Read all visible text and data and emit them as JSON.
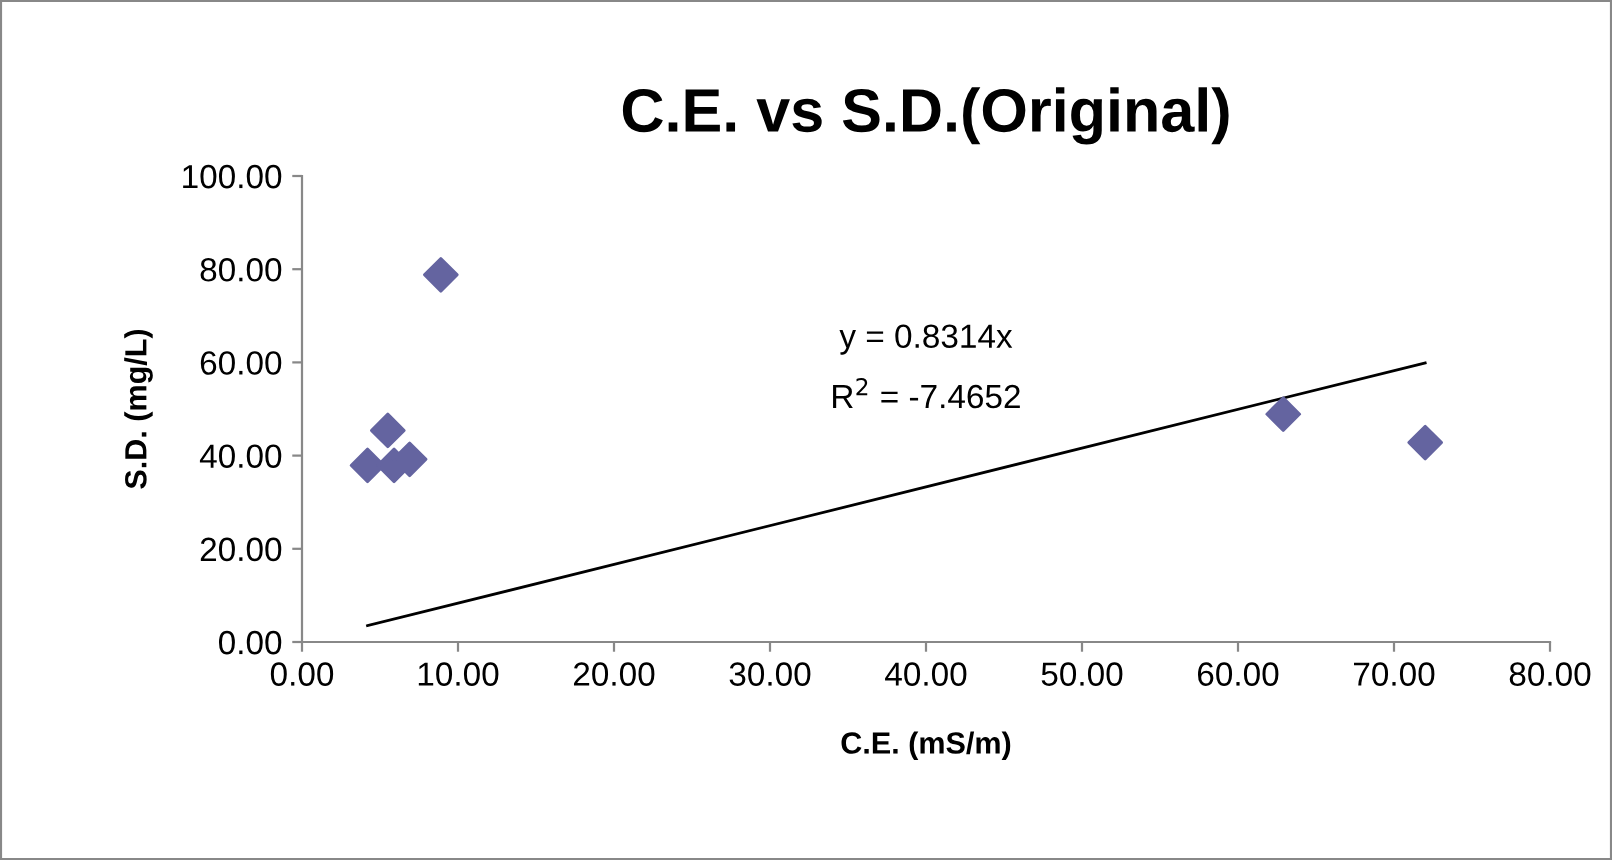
{
  "chart_data": {
    "type": "scatter",
    "title": "C.E. vs S.D.(Original)",
    "xlabel": "C.E. (mS/m)",
    "ylabel": "S.D. (mg/L)",
    "series": [
      {
        "color": "#6464a0",
        "marker": "diamond",
        "x": [
          4.2,
          5.5,
          5.9,
          6.9,
          8.9,
          62.9,
          72.0
        ],
        "values": [
          37.9,
          45.4,
          37.9,
          39.2,
          78.8,
          48.9,
          42.8
        ]
      },
      {
        "type": "line",
        "color": "#000000",
        "marker": "none",
        "line_style": "solid",
        "x": [
          4.2,
          72.0
        ],
        "values": [
          3.5,
          59.9
        ]
      }
    ],
    "annotations": [
      "y = 0.8314x",
      "R$^{2}$ = -7.4652"
    ],
    "xlim": [
      0,
      80
    ],
    "xticks": [
      {
        "value": 0,
        "label": "0.00"
      },
      {
        "value": 10,
        "label": "10.00"
      },
      {
        "value": 20,
        "label": "20.00"
      },
      {
        "value": 30,
        "label": "30.00"
      },
      {
        "value": 40,
        "label": "40.00"
      },
      {
        "value": 50,
        "label": "50.00"
      },
      {
        "value": 60,
        "label": "60.00"
      },
      {
        "value": 70,
        "label": "70.00"
      },
      {
        "value": 80,
        "label": "80.00"
      }
    ],
    "ylim": [
      0,
      100
    ],
    "yticks": [
      {
        "value": 0,
        "label": "0.00"
      },
      {
        "value": 20,
        "label": "20.00"
      },
      {
        "value": 40,
        "label": "40.00"
      },
      {
        "value": 60,
        "label": "60.00"
      },
      {
        "value": 80,
        "label": "80.00"
      },
      {
        "value": 100,
        "label": "100.00"
      }
    ],
    "grid": false,
    "legend": false
  }
}
